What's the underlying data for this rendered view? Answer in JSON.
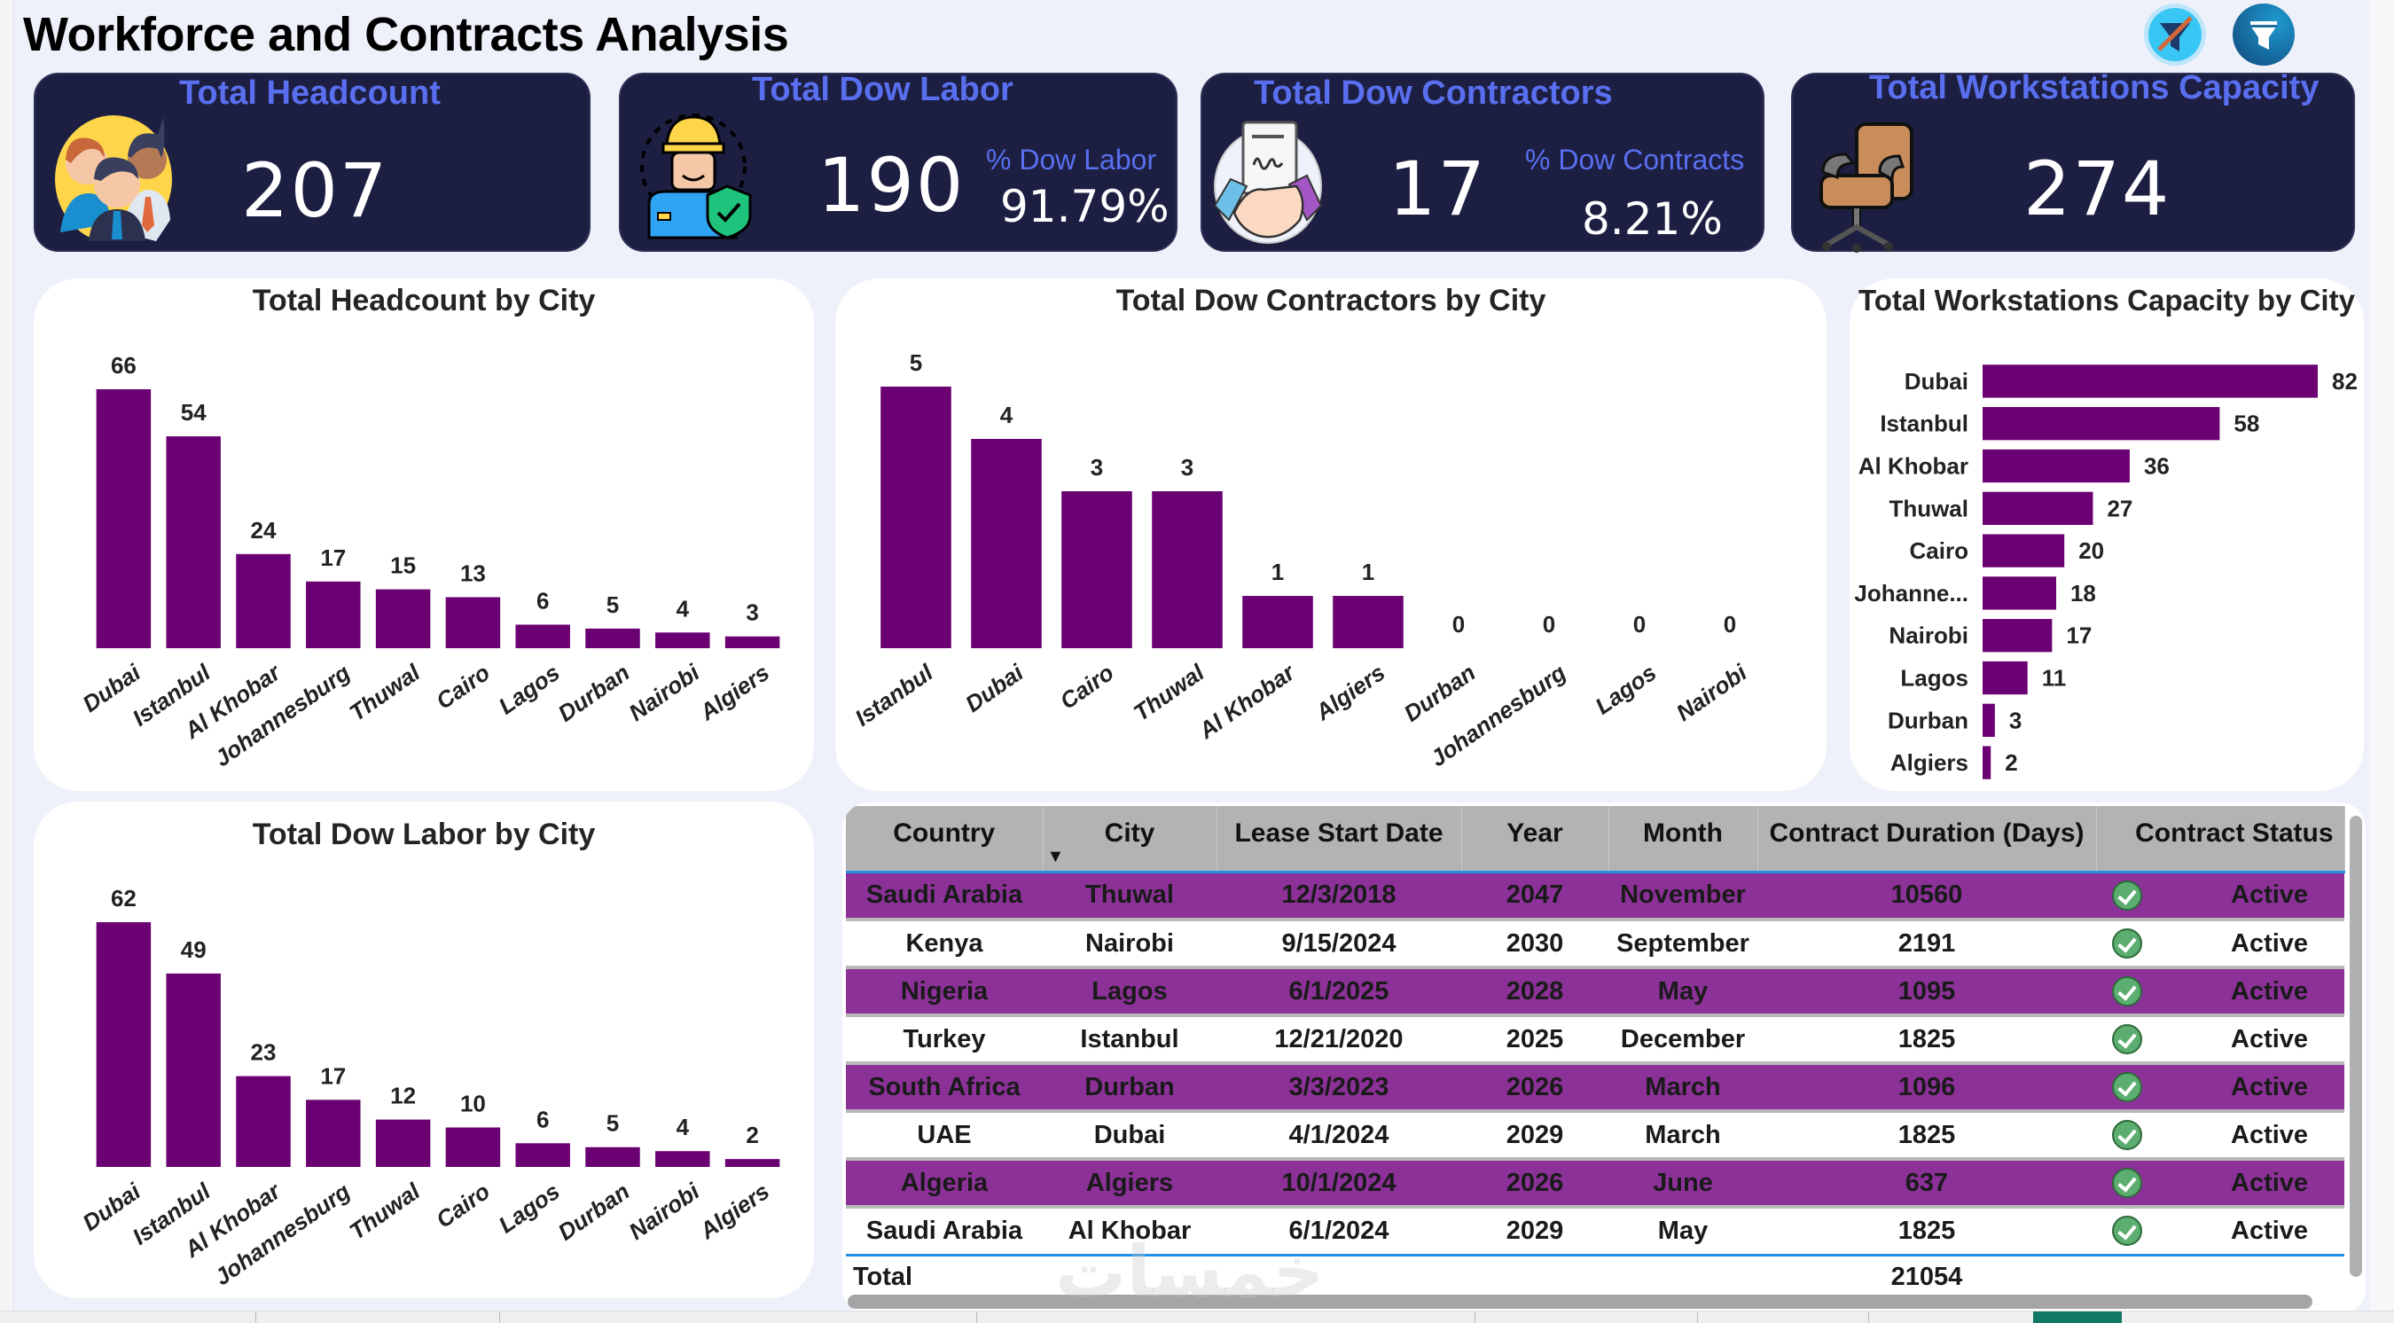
{
  "header": {
    "title": "Workforce and Contracts Analysis",
    "clear_filters_icon": "filter-clear-icon",
    "filter_icon": "filter-icon"
  },
  "kpis": {
    "headcount": {
      "title": "Total Headcount",
      "value": "207",
      "icon": "people-group-icon"
    },
    "dow_labor": {
      "title": "Total Dow Labor",
      "value": "190",
      "sub_label": "% Dow Labor",
      "sub_value": "91.79%",
      "icon": "worker-shield-icon"
    },
    "dow_contractors": {
      "title": "Total Dow Contractors",
      "value": "17",
      "sub_label": "% Dow Contracts",
      "sub_value": "8.21%",
      "icon": "handshake-contract-icon"
    },
    "workstations": {
      "title": "Total Workstations Capacity",
      "value": "274",
      "icon": "office-chair-icon"
    }
  },
  "colors": {
    "bar": "#6a0072",
    "kpi_bg": "#1c1f41",
    "kpi_title": "#5a6ff0",
    "row_highlight": "#8c3198",
    "status_ok": "#5cae70",
    "accent_line": "#1e90e6"
  },
  "chart_data": [
    {
      "id": "headcount_by_city",
      "type": "bar",
      "title": "Total Headcount by City",
      "categories": [
        "Dubai",
        "Istanbul",
        "Al Khobar",
        "Johannesburg",
        "Thuwal",
        "Cairo",
        "Lagos",
        "Durban",
        "Nairobi",
        "Algiers"
      ],
      "values": [
        66,
        54,
        24,
        17,
        15,
        13,
        6,
        5,
        4,
        3
      ],
      "xlabel": "",
      "ylabel": "",
      "ylim": [
        0,
        66
      ],
      "grid": false,
      "legend": "none"
    },
    {
      "id": "contractors_by_city",
      "type": "bar",
      "title": "Total Dow Contractors by City",
      "categories": [
        "Istanbul",
        "Dubai",
        "Cairo",
        "Thuwal",
        "Al Khobar",
        "Algiers",
        "Durban",
        "Johannesburg",
        "Lagos",
        "Nairobi"
      ],
      "values": [
        5,
        4,
        3,
        3,
        1,
        1,
        0,
        0,
        0,
        0
      ],
      "xlabel": "",
      "ylabel": "",
      "ylim": [
        0,
        5
      ],
      "grid": false,
      "legend": "none"
    },
    {
      "id": "workstations_by_city",
      "type": "bar",
      "orientation": "horizontal",
      "title": "Total Workstations Capacity by City",
      "categories": [
        "Dubai",
        "Istanbul",
        "Al Khobar",
        "Thuwal",
        "Cairo",
        "Johanne...",
        "Nairobi",
        "Lagos",
        "Durban",
        "Algiers"
      ],
      "values": [
        82,
        58,
        36,
        27,
        20,
        18,
        17,
        11,
        3,
        2
      ],
      "xlabel": "",
      "ylabel": "",
      "xlim": [
        0,
        82
      ],
      "grid": false,
      "legend": "none"
    },
    {
      "id": "labor_by_city",
      "type": "bar",
      "title": "Total Dow Labor by City",
      "categories": [
        "Dubai",
        "Istanbul",
        "Al Khobar",
        "Johannesburg",
        "Thuwal",
        "Cairo",
        "Lagos",
        "Durban",
        "Nairobi",
        "Algiers"
      ],
      "values": [
        62,
        49,
        23,
        17,
        12,
        10,
        6,
        5,
        4,
        2
      ],
      "xlabel": "",
      "ylabel": "",
      "ylim": [
        0,
        62
      ],
      "grid": false,
      "legend": "none"
    }
  ],
  "table": {
    "columns": [
      "Country",
      "City",
      "Lease Start Date",
      "Year",
      "Month",
      "Contract Duration (Days)",
      "Contract Status"
    ],
    "sort_column": "City",
    "rows": [
      [
        "Saudi Arabia",
        "Thuwal",
        "12/3/2018",
        "2047",
        "November",
        "10560",
        "Active"
      ],
      [
        "Kenya",
        "Nairobi",
        "9/15/2024",
        "2030",
        "September",
        "2191",
        "Active"
      ],
      [
        "Nigeria",
        "Lagos",
        "6/1/2025",
        "2028",
        "May",
        "1095",
        "Active"
      ],
      [
        "Turkey",
        "Istanbul",
        "12/21/2020",
        "2025",
        "December",
        "1825",
        "Active"
      ],
      [
        "South Africa",
        "Durban",
        "3/3/2023",
        "2026",
        "March",
        "1096",
        "Active"
      ],
      [
        "UAE",
        "Dubai",
        "4/1/2024",
        "2029",
        "March",
        "1825",
        "Active"
      ],
      [
        "Algeria",
        "Algiers",
        "10/1/2024",
        "2026",
        "June",
        "637",
        "Active"
      ],
      [
        "Saudi Arabia",
        "Al Khobar",
        "6/1/2024",
        "2029",
        "May",
        "1825",
        "Active"
      ]
    ],
    "total_label": "Total",
    "total_duration": "21054"
  },
  "watermark": "خمسات"
}
